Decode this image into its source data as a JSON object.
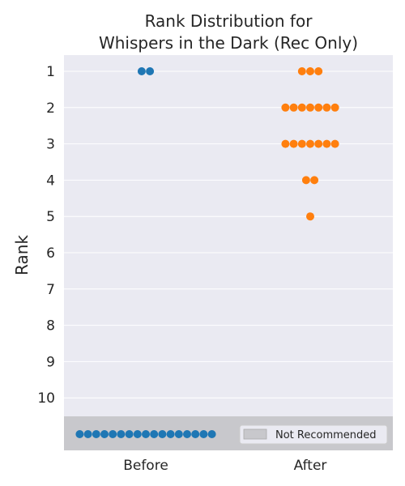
{
  "chart_data": {
    "type": "scatter",
    "subtype": "swarm",
    "title_lines": [
      "Rank Distribution for",
      "Whispers in the Dark (Rec Only)"
    ],
    "ylabel": "Rank",
    "xlabel": "",
    "categories": [
      "Before",
      "After"
    ],
    "y_ticks": [
      "1",
      "2",
      "3",
      "4",
      "5",
      "6",
      "7",
      "8",
      "9",
      "10"
    ],
    "y_inverted": true,
    "grid": true,
    "not_recommended_band": {
      "label": "Not Recommended",
      "color": "#c8c8cc"
    },
    "legend": {
      "placement": "bottom-right",
      "entries": [
        "Not Recommended"
      ]
    },
    "series": [
      {
        "category": "Before",
        "color": "#1f77b4",
        "counts_by_rank": {
          "1": 2
        },
        "not_recommended_count": 17
      },
      {
        "category": "After",
        "color": "#ff7f0e",
        "counts_by_rank": {
          "1": 3,
          "2": 7,
          "3": 7,
          "4": 2,
          "5": 1
        },
        "not_recommended_count": 0
      }
    ],
    "colors": {
      "axes_bg": "#eaeaf2",
      "grid": "#ffffff"
    }
  }
}
